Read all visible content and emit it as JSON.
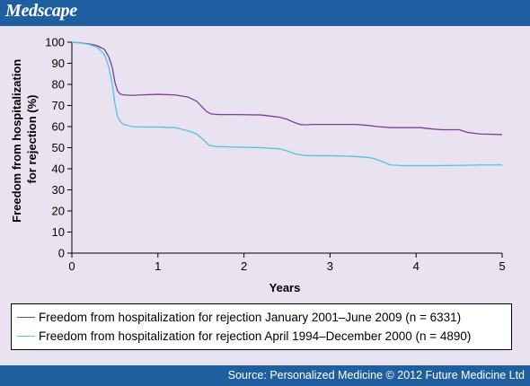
{
  "header": {
    "brand": "Medscape"
  },
  "footer": {
    "source": "Source: Personalized Medicine © 2012 Future Medicine Ltd"
  },
  "colors": {
    "header_bg": "#1f5fa0",
    "panel_bg": "#e9e2f1",
    "series_2001": "#7b3f96",
    "series_1994": "#55c2dd"
  },
  "chart_data": {
    "type": "line",
    "title": "",
    "xlabel": "Years",
    "ylabel": "Freedom from hospitalization for rejection (%)",
    "ylabel_lines": [
      "Freedom from hospitalization",
      "for rejection (%)"
    ],
    "xlim": [
      0,
      5
    ],
    "ylim": [
      0,
      100
    ],
    "xticks": [
      "0",
      "1",
      "2",
      "3",
      "4",
      "5"
    ],
    "yticks": [
      "0",
      "10",
      "20",
      "30",
      "40",
      "50",
      "60",
      "70",
      "80",
      "90",
      "100"
    ],
    "grid": false,
    "legend_position": "bottom",
    "series": [
      {
        "name": "Freedom from hospitalization for rejection January 2001–June 2009 (n = 6331)",
        "color": "#7b3f96",
        "x": [
          0,
          0.1,
          0.2,
          0.3,
          0.38,
          0.43,
          0.47,
          0.5,
          0.53,
          0.56,
          0.6,
          0.7,
          0.8,
          1.0,
          1.2,
          1.35,
          1.45,
          1.52,
          1.57,
          1.62,
          1.7,
          1.9,
          2.2,
          2.4,
          2.5,
          2.58,
          2.65,
          2.72,
          2.8,
          3.0,
          3.3,
          3.45,
          3.55,
          3.7,
          3.9,
          4.05,
          4.2,
          4.3,
          4.5,
          4.6,
          4.75,
          5.0
        ],
        "y": [
          100,
          99.7,
          99.2,
          98.3,
          96.5,
          93,
          88,
          81,
          77,
          75.5,
          75,
          74.8,
          75,
          75.3,
          75,
          74,
          72,
          69,
          67,
          66,
          65.7,
          65.7,
          65.5,
          64.5,
          63.5,
          62,
          61,
          60.8,
          61,
          61,
          61,
          60.5,
          60,
          59.5,
          59.5,
          59.5,
          58.8,
          58.5,
          58.5,
          57.2,
          56.5,
          56.2
        ]
      },
      {
        "name": "Freedom from hospitalization for rejection April 1994–December 2000 (n = 4890)",
        "color": "#55c2dd",
        "x": [
          0,
          0.1,
          0.2,
          0.3,
          0.38,
          0.43,
          0.47,
          0.5,
          0.53,
          0.56,
          0.6,
          0.7,
          0.8,
          1.0,
          1.2,
          1.35,
          1.45,
          1.52,
          1.6,
          1.7,
          1.9,
          2.2,
          2.4,
          2.5,
          2.6,
          2.7,
          2.8,
          3.0,
          3.2,
          3.4,
          3.5,
          3.6,
          3.7,
          3.85,
          4.0,
          4.2,
          4.5,
          4.75,
          5.0
        ],
        "y": [
          100,
          99.6,
          99,
          97.5,
          94,
          88,
          80,
          71,
          65,
          62.5,
          61,
          60,
          59.8,
          59.8,
          59.5,
          58,
          56.5,
          54,
          51,
          50.5,
          50.3,
          50,
          49.5,
          48.5,
          47,
          46.3,
          46.2,
          46.2,
          46,
          45.5,
          45,
          43.5,
          41.8,
          41.5,
          41.5,
          41.5,
          41.6,
          41.8,
          41.8
        ]
      }
    ]
  }
}
